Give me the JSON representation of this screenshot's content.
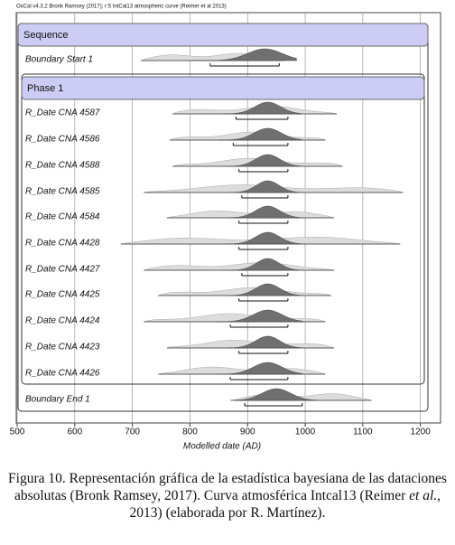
{
  "chart_data": {
    "type": "multiplot",
    "header": "OxCal v4.3.2 Bronk Ramsey (2017); r:5 IntCal13 atmospheric curve (Reimer et al 2013)",
    "xlabel": "Modelled date (AD)",
    "xlim": [
      500,
      1235
    ],
    "xticks": [
      500,
      600,
      700,
      800,
      900,
      1000,
      1100,
      1200
    ],
    "groups": [
      "Sequence",
      "Phase 1"
    ],
    "rows": [
      {
        "name": "Boundary Start 1",
        "span": [
          715,
          965
        ],
        "hpd95": [
          835,
          955
        ],
        "mode": 930
      },
      {
        "name": "R_Date CNA 4587",
        "span": [
          770,
          1055
        ],
        "hpd95": [
          880,
          970
        ],
        "mode": 935
      },
      {
        "name": "R_Date CNA 4586",
        "span": [
          765,
          1035
        ],
        "hpd95": [
          875,
          970
        ],
        "mode": 935
      },
      {
        "name": "R_Date CNA 4588",
        "span": [
          770,
          1065
        ],
        "hpd95": [
          885,
          970
        ],
        "mode": 935
      },
      {
        "name": "R_Date CNA 4585",
        "span": [
          720,
          1170
        ],
        "hpd95": [
          890,
          970
        ],
        "mode": 935
      },
      {
        "name": "R_Date CNA 4584",
        "span": [
          760,
          1050
        ],
        "hpd95": [
          885,
          970
        ],
        "mode": 935
      },
      {
        "name": "R_Date CNA 4428",
        "span": [
          680,
          1165
        ],
        "hpd95": [
          885,
          970
        ],
        "mode": 935
      },
      {
        "name": "R_Date CNA 4427",
        "span": [
          720,
          1050
        ],
        "hpd95": [
          890,
          970
        ],
        "mode": 935
      },
      {
        "name": "R_Date CNA 4425",
        "span": [
          745,
          1045
        ],
        "hpd95": [
          885,
          970
        ],
        "mode": 935
      },
      {
        "name": "R_Date CNA 4424",
        "span": [
          720,
          1035
        ],
        "hpd95": [
          870,
          970
        ],
        "mode": 935
      },
      {
        "name": "R_Date CNA 4423",
        "span": [
          760,
          1050
        ],
        "hpd95": [
          885,
          970
        ],
        "mode": 935
      },
      {
        "name": "R_Date CNA 4426",
        "span": [
          745,
          1035
        ],
        "hpd95": [
          870,
          970
        ],
        "mode": 935
      },
      {
        "name": "Boundary End 1",
        "span": [
          875,
          1115
        ],
        "hpd95": [
          895,
          995
        ],
        "mode": 950
      }
    ]
  },
  "caption": [
    "Figura 10. Representación gráfica de la estadística bayesiana de las dataciones absolutas (Bronk Ramsey, 2017). Curva atmosférica Intcal13 (Reimer ",
    "et al.",
    ", 2013) (elaborada por R. Martínez)."
  ]
}
